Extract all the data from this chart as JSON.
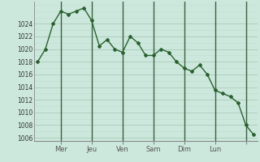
{
  "x_values": [
    0,
    1,
    2,
    3,
    4,
    5,
    6,
    7,
    8,
    9,
    10,
    11,
    12,
    13,
    14,
    15,
    16,
    17,
    18,
    19,
    20,
    21,
    22,
    23,
    24,
    25,
    26,
    27,
    28
  ],
  "y_values": [
    1018,
    1020,
    1024,
    1026,
    1025.5,
    1026,
    1026.5,
    1024.5,
    1020.5,
    1021.5,
    1020,
    1019.5,
    1022,
    1021,
    1019,
    1019,
    1020,
    1019.5,
    1018,
    1017,
    1016.5,
    1017.5,
    1016,
    1013.5,
    1013,
    1012.5,
    1011.5,
    1008,
    1006.5
  ],
  "x_tick_positions": [
    3,
    7,
    11,
    15,
    19,
    23,
    27
  ],
  "x_tick_labels": [
    "Mer",
    "Jeu",
    "Ven",
    "Sam",
    "Dim",
    "Lun",
    ""
  ],
  "day_lines": [
    3,
    7,
    11,
    15,
    19,
    23,
    27
  ],
  "ylim": [
    1005.5,
    1027.5
  ],
  "yticks": [
    1006,
    1008,
    1010,
    1012,
    1014,
    1016,
    1018,
    1020,
    1022,
    1024
  ],
  "line_color": "#2a6030",
  "marker_color": "#2a6030",
  "bg_color": "#cce8dc",
  "grid_major_color": "#aacaba",
  "grid_minor_color": "#c0ddd0",
  "day_line_color": "#3a6040"
}
